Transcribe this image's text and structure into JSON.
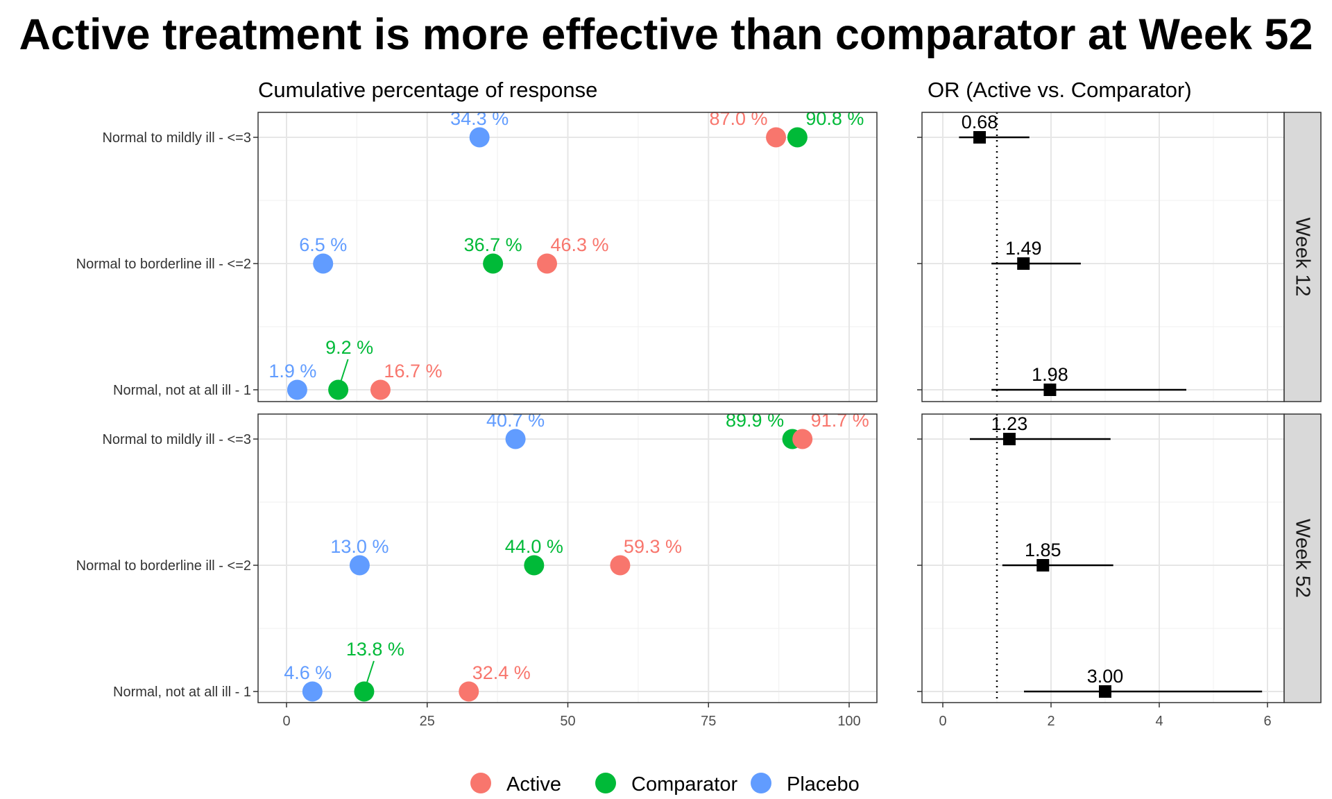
{
  "chart_data": {
    "title": "Active treatment is more effective than comparator at Week 52",
    "legend": {
      "placement": "bottom",
      "entries": [
        {
          "name": "Active",
          "color": "#F8766D"
        },
        {
          "name": "Comparator",
          "color": "#00BA38"
        },
        {
          "name": "Placebo",
          "color": "#619CFF"
        }
      ]
    },
    "categories": [
      "Normal to mildly ill - <=3",
      "Normal to borderline ill - <=2",
      "Normal, not at all ill -   1"
    ],
    "panels": [
      {
        "type": "scatter",
        "subtitle": "Cumulative percentage of response",
        "xlim": [
          0,
          100
        ],
        "xticks": [
          0,
          25,
          50,
          75,
          100
        ],
        "grid": true,
        "facets": [
          {
            "facet": "Week 12",
            "series": [
              {
                "name": "Active",
                "values": [
                  87.0,
                  46.3,
                  16.7
                ],
                "labels": [
                  "87.0 %",
                  "46.3 %",
                  "16.7 %"
                ]
              },
              {
                "name": "Comparator",
                "values": [
                  90.8,
                  36.7,
                  9.2
                ],
                "labels": [
                  "90.8 %",
                  "36.7 %",
                  "9.2 %"
                ]
              },
              {
                "name": "Placebo",
                "values": [
                  34.3,
                  6.5,
                  1.9
                ],
                "labels": [
                  "34.3 %",
                  "6.5 %",
                  "1.9 %"
                ]
              }
            ]
          },
          {
            "facet": "Week 52",
            "series": [
              {
                "name": "Active",
                "values": [
                  91.7,
                  59.3,
                  32.4
                ],
                "labels": [
                  "91.7 %",
                  "59.3 %",
                  "32.4 %"
                ]
              },
              {
                "name": "Comparator",
                "values": [
                  89.9,
                  44.0,
                  13.8
                ],
                "labels": [
                  "89.9 %",
                  "44.0 %",
                  "13.8 %"
                ]
              },
              {
                "name": "Placebo",
                "values": [
                  40.7,
                  13.0,
                  4.6
                ],
                "labels": [
                  "40.7 %",
                  "13.0 %",
                  "4.6 %"
                ]
              }
            ]
          }
        ]
      },
      {
        "type": "forest",
        "subtitle": "OR (Active vs. Comparator)",
        "xlim": [
          -0.4,
          6.35
        ],
        "xticks": [
          0,
          2,
          4,
          6
        ],
        "reference_line": 1,
        "grid": true,
        "facets": [
          {
            "facet": "Week 12",
            "or": [
              0.68,
              1.49,
              1.98
            ],
            "ci_low": [
              0.3,
              0.9,
              0.9
            ],
            "ci_high": [
              1.6,
              2.55,
              4.5
            ],
            "labels": [
              "0.68",
              "1.49",
              "1.98"
            ]
          },
          {
            "facet": "Week 52",
            "or": [
              1.23,
              1.85,
              3.0
            ],
            "ci_low": [
              0.5,
              1.1,
              1.5
            ],
            "ci_high": [
              3.1,
              3.15,
              5.9
            ],
            "labels": [
              "1.23",
              "1.85",
              "3.00"
            ]
          }
        ]
      }
    ]
  }
}
